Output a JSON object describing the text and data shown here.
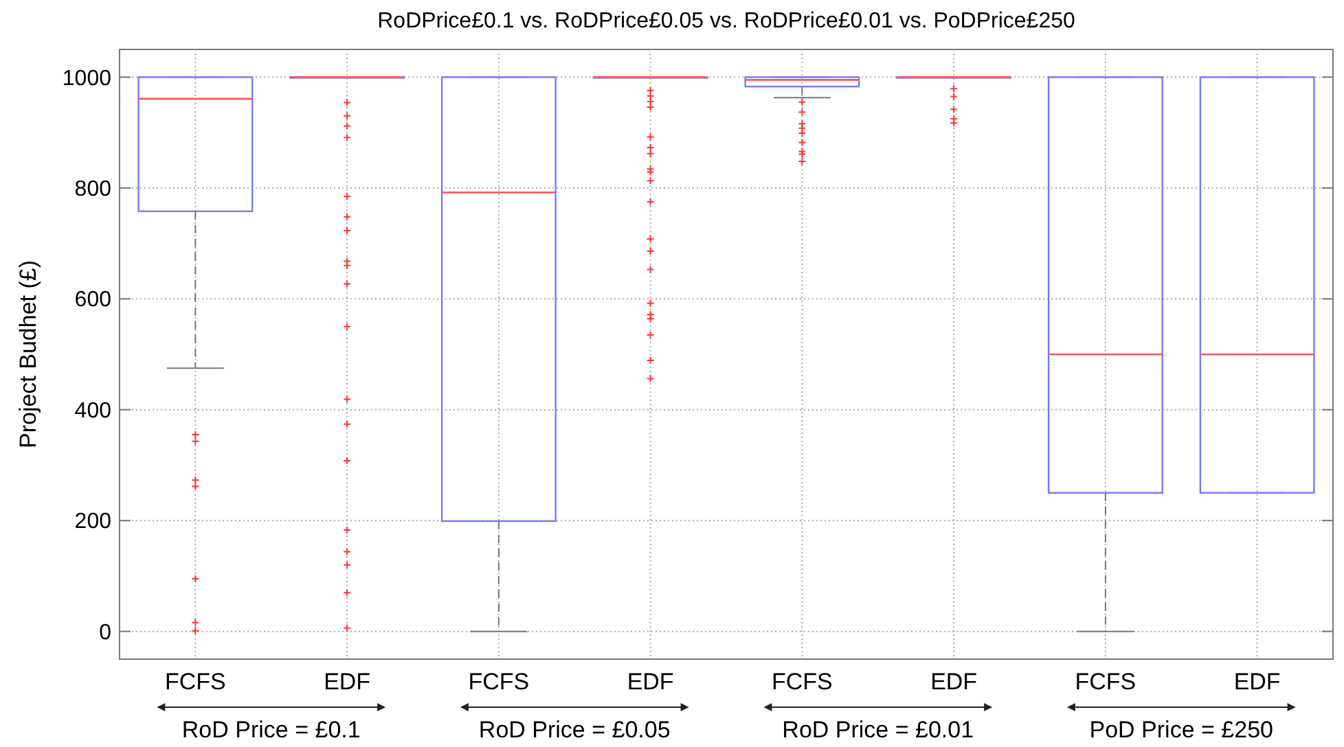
{
  "chart_data": {
    "type": "box",
    "title": "RoDPrice£0.1 vs. RoDPrice£0.05 vs. RoDPrice£0.01 vs. PoDPrice£250",
    "ylabel": "Project Budhet (£)",
    "categories": [
      "FCFS",
      "EDF",
      "FCFS",
      "EDF",
      "FCFS",
      "EDF",
      "FCFS",
      "EDF"
    ],
    "ylim": [
      -50,
      1050
    ],
    "yticks": [
      0,
      200,
      400,
      600,
      800,
      1000
    ],
    "grid": true,
    "annotations": [
      "RoD Price = £0.1",
      "RoD Price = £0.05",
      "RoD Price = £0.01",
      "PoD Price = £250"
    ],
    "series": [
      {
        "color": "#7777ff",
        "boxes": [
          {
            "low": 475,
            "q1": 758,
            "median": 961,
            "q3": 1000,
            "high": 1000,
            "outliers": [
              355,
              343,
              273,
              262,
              95,
              16,
              1
            ]
          },
          {
            "low": 1000,
            "q1": 1000,
            "median": 1000,
            "q3": 1000,
            "high": 1000,
            "outliers": [
              954,
              930,
              912,
              891,
              785,
              748,
              723,
              668,
              660,
              627,
              550,
              419,
              374,
              308,
              183,
              144,
              120,
              70,
              6
            ]
          },
          {
            "low": 0,
            "q1": 199,
            "median": 792,
            "q3": 1000,
            "high": 1000
          },
          {
            "low": 1000,
            "q1": 1000,
            "median": 1000,
            "q3": 1000,
            "high": 1000,
            "outliers": [
              976,
              966,
              956,
              946,
              892,
              873,
              862,
              834,
              829,
              813,
              775,
              708,
              686,
              653,
              592,
              572,
              564,
              535,
              489,
              456
            ]
          },
          {
            "low": 963,
            "q1": 983,
            "median": 995,
            "q3": 1000,
            "high": 1000,
            "outliers": [
              955,
              937,
              916,
              908,
              899,
              882,
              866,
              861,
              848
            ]
          },
          {
            "low": 1000,
            "q1": 1000,
            "median": 1000,
            "q3": 1000,
            "high": 1000,
            "outliers": [
              979,
              965,
              942,
              925,
              917
            ]
          },
          {
            "low": 0,
            "q1": 250,
            "median": 500,
            "q3": 1000,
            "high": 1000
          },
          {
            "low": 250,
            "q1": 250,
            "median": 500,
            "q3": 1000,
            "high": 1000
          }
        ]
      }
    ]
  }
}
